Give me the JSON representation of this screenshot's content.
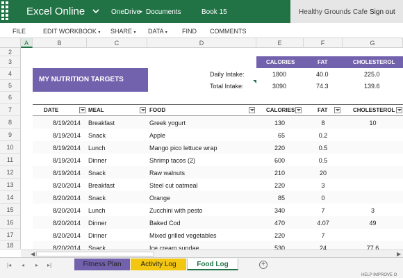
{
  "titlebar": {
    "app_title": "Excel Online",
    "breadcrumb_onedrive": "OneDrive",
    "breadcrumb_sep": "▸",
    "breadcrumb_documents": "Documents",
    "book_name": "Book 15",
    "user_name": "Healthy Grounds Cafe",
    "signout_label": "Sign out",
    "bar_color": "#217346"
  },
  "menu": {
    "file": "FILE",
    "edit_workbook": "EDIT WORKBOOK",
    "share": "SHARE",
    "data": "DATA",
    "find": "FIND",
    "comments": "COMMENTS"
  },
  "columns": [
    "A",
    "B",
    "C",
    "D",
    "E",
    "F",
    "G"
  ],
  "row_numbers": [
    "2",
    "3",
    "4",
    "5",
    "6",
    "7",
    "8",
    "9",
    "10",
    "11",
    "12",
    "13",
    "14",
    "15",
    "16",
    "17",
    "18"
  ],
  "targets": {
    "title": "MY NUTRITION TARGETS",
    "headers": {
      "calories": "CALORIES",
      "fat": "FAT",
      "cholesterol": "CHOLESTEROL"
    },
    "daily": {
      "label": "Daily Intake:",
      "calories": "1800",
      "fat": "40.0",
      "cholesterol": "225.0"
    },
    "total": {
      "label": "Total Intake:",
      "calories": "3090",
      "fat": "74.3",
      "cholesterol": "139.6"
    },
    "accent_color": "#7262ad"
  },
  "log_table": {
    "headers": {
      "date": "DATE",
      "meal": "MEAL",
      "food": "FOOD",
      "calories": "CALORIES",
      "fat": "FAT",
      "cholesterol": "CHOLESTEROL"
    },
    "rows": [
      {
        "date": "8/19/2014",
        "meal": "Breakfast",
        "food": "Greek yogurt",
        "calories": "130",
        "fat": "8",
        "cholesterol": "10"
      },
      {
        "date": "8/19/2014",
        "meal": "Snack",
        "food": "Apple",
        "calories": "65",
        "fat": "0.2",
        "cholesterol": ""
      },
      {
        "date": "8/19/2014",
        "meal": "Lunch",
        "food": "Mango pico lettuce wrap",
        "calories": "220",
        "fat": "0.5",
        "cholesterol": ""
      },
      {
        "date": "8/19/2014",
        "meal": "Dinner",
        "food": "Shrimp tacos (2)",
        "calories": "600",
        "fat": "0.5",
        "cholesterol": ""
      },
      {
        "date": "8/19/2014",
        "meal": "Snack",
        "food": "Raw walnuts",
        "calories": "210",
        "fat": "20",
        "cholesterol": ""
      },
      {
        "date": "8/20/2014",
        "meal": "Breakfast",
        "food": "Steel cut oatmeal",
        "calories": "220",
        "fat": "3",
        "cholesterol": ""
      },
      {
        "date": "8/20/2014",
        "meal": "Snack",
        "food": "Orange",
        "calories": "85",
        "fat": "0",
        "cholesterol": ""
      },
      {
        "date": "8/20/2014",
        "meal": "Lunch",
        "food": "Zucchini with pesto",
        "calories": "340",
        "fat": "7",
        "cholesterol": "3"
      },
      {
        "date": "8/20/2014",
        "meal": "Dinner",
        "food": "Baked Cod",
        "calories": "470",
        "fat": "4.07",
        "cholesterol": "49"
      },
      {
        "date": "8/20/2014",
        "meal": "Dinner",
        "food": "Mixed grilled vegetables",
        "calories": "220",
        "fat": "7",
        "cholesterol": ""
      },
      {
        "date": "8/20/2014",
        "meal": "Snack",
        "food": "Ice cream sundae",
        "calories": "530",
        "fat": "24",
        "cholesterol": "77.6"
      }
    ]
  },
  "sheet_tabs": [
    {
      "label": "Fitness Plan",
      "color": "#7262ad"
    },
    {
      "label": "Activity Log",
      "color": "#f2c611"
    },
    {
      "label": "Food Log",
      "color": "#ffffff"
    }
  ],
  "status": {
    "text": "HELP IMPROVE O"
  }
}
